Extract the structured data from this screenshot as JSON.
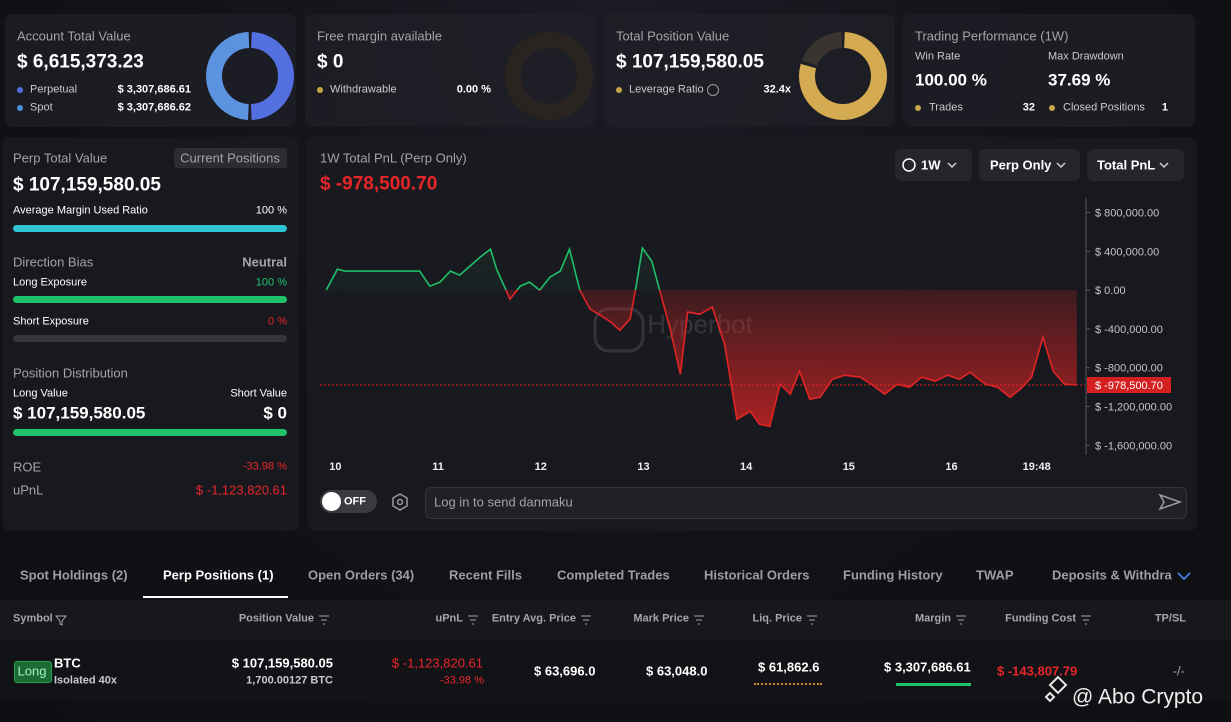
{
  "cards": [
    {
      "title": "Account Total Value",
      "value": "$ 6,615,373.23",
      "items": [
        {
          "label": "Perpetual",
          "value": "$ 3,307,686.61",
          "color": "#5470e0"
        },
        {
          "label": "Spot",
          "value": "$ 3,307,686.62",
          "color": "#4a90d9"
        }
      ],
      "donut": {
        "values": [
          3307686.61,
          3307686.62
        ],
        "colors": [
          "#5470e0",
          "#5b93e0"
        ]
      }
    },
    {
      "title": "Free margin available",
      "value": "$ 0",
      "items": [
        {
          "label": "Withdrawable",
          "value": "0.00 %",
          "color": "#c9a54c"
        }
      ]
    },
    {
      "title": "Total Position Value",
      "value": "$ 107,159,580.05",
      "items": [
        {
          "label": "Leverage Ratio",
          "value": "32.4x",
          "color": "#c9a54c"
        }
      ],
      "donut": {
        "values": [
          80,
          20
        ],
        "colors": [
          "#d4ab50",
          "#3a3430"
        ]
      }
    }
  ],
  "performance": {
    "title": "Trading Performance (1W)",
    "stats": [
      {
        "label": "Win Rate",
        "value": "100.00 %"
      },
      {
        "label": "Max Drawdown",
        "value": "37.69 %"
      }
    ],
    "counts": [
      {
        "label": "Trades",
        "value": "32",
        "color": "#c9a54c"
      },
      {
        "label": "Closed Positions",
        "value": "1",
        "color": "#c9a54c"
      }
    ]
  },
  "perp_panel": {
    "title": "Perp Total Value",
    "button": "Current Positions",
    "value": "$ 107,159,580.05",
    "margin_label": "Average Margin Used Ratio",
    "margin_value": "100 %",
    "direction_label": "Direction Bias",
    "direction_value": "Neutral",
    "long_label": "Long Exposure",
    "long_value": "100 %",
    "short_label": "Short Exposure",
    "short_value": "0 %",
    "distribution_title": "Position Distribution",
    "long_value_label": "Long Value",
    "short_value_label": "Short Value",
    "long_amount": "$ 107,159,580.05",
    "short_amount": "$ 0",
    "roe_label": "ROE",
    "roe": "-33.98 %",
    "upnl_label": "uPnL",
    "upnl": "$ -1,123,820.61"
  },
  "chart": {
    "type": "line",
    "title": "1W Total PnL (Perp Only)",
    "pnl_value": "$ -978,500.70",
    "watermark": "Hyperbot",
    "controls": [
      "1W",
      "Perp Only",
      "Total PnL"
    ],
    "positive_color": "#1fbf6a",
    "negative_color": "#e02424",
    "x": [
      9.91,
      10.02,
      10.09,
      10.82,
      10.92,
      11.02,
      11.12,
      11.21,
      11.31,
      11.41,
      11.51,
      11.57,
      11.7,
      11.8,
      11.89,
      11.99,
      12.09,
      12.19,
      12.28,
      12.38,
      12.48,
      12.58,
      12.67,
      12.77,
      12.87,
      12.93,
      12.99,
      13.08,
      13.16,
      13.26,
      13.36,
      13.43,
      13.55,
      13.67,
      13.79,
      13.91,
      14.04,
      14.13,
      14.23,
      14.33,
      14.43,
      14.52,
      14.62,
      14.72,
      14.84,
      14.96,
      15.11,
      15.22,
      15.35,
      15.47,
      15.59,
      15.71,
      15.84,
      15.96,
      16.08,
      16.18,
      16.33,
      16.45,
      16.57,
      16.67,
      16.78,
      16.89,
      16.99,
      17.1,
      17.22
    ],
    "values": [
      0,
      217000,
      196000,
      196000,
      41000,
      83000,
      196000,
      155000,
      248000,
      341000,
      423000,
      217000,
      -93000,
      41000,
      83000,
      0,
      134000,
      196000,
      423000,
      0,
      -196000,
      -258000,
      -320000,
      -413000,
      -299000,
      52000,
      434000,
      299000,
      -10000,
      -402000,
      -867000,
      -227000,
      -248000,
      -175000,
      -557000,
      -1332000,
      -1249000,
      -1383000,
      -1404000,
      -970000,
      -1073000,
      -836000,
      -1125000,
      -1105000,
      -918000,
      -877000,
      -898000,
      -970000,
      -1073000,
      -970000,
      -1001000,
      -898000,
      -939000,
      -877000,
      -918000,
      -846000,
      -970000,
      -1001000,
      -1105000,
      -1022000,
      -898000,
      -485000,
      -836000,
      -970000,
      -978500.7
    ],
    "xlim": [
      9.85,
      17.3
    ],
    "xticks": [
      10,
      11,
      12,
      13,
      14,
      15,
      16,
      {
        "value": 16.83,
        "label": "19:48"
      }
    ],
    "ylim": [
      -1700000,
      950000
    ],
    "yticks": [
      {
        "value": 800000,
        "label": "$ 800,000.00"
      },
      {
        "value": 400000,
        "label": "$ 400,000.00"
      },
      {
        "value": 0,
        "label": "$ 0.00"
      },
      {
        "value": -400000,
        "label": "$ -400,000.00"
      },
      {
        "value": -800000,
        "label": "$ -800,000.00"
      },
      {
        "value": -1200000,
        "label": "$ -1,200,000.00"
      },
      {
        "value": -1600000,
        "label": "$ -1,600,000.00"
      }
    ]
  },
  "danmaku": {
    "toggle": "OFF",
    "placeholder": "Log in to send danmaku"
  },
  "tabs": [
    "Spot Holdings (2)",
    "Perp Positions (1)",
    "Open Orders (34)",
    "Recent Fills",
    "Completed Trades",
    "Historical Orders",
    "Funding History",
    "TWAP",
    "Deposits & Withdra"
  ],
  "table": {
    "headers": [
      "Symbol",
      "Position Value",
      "uPnL",
      "Entry Avg. Price",
      "Mark Price",
      "Liq. Price",
      "Margin",
      "Funding Cost",
      "TP/SL"
    ],
    "rows": [
      {
        "side": "Long",
        "symbol": "BTC",
        "mode": "Isolated 40x",
        "position_value": "$ 107,159,580.05",
        "size": "1,700.00127 BTC",
        "upnl": "$ -1,123,820.61",
        "upnl_pct": "-33.98 %",
        "entry": "$ 63,696.0",
        "mark": "$ 63,048.0",
        "liq": "$ 61,862.6",
        "margin": "$ 3,307,686.61",
        "funding": "$ -143,807.79",
        "tpsl": "-/-"
      }
    ]
  },
  "watermark": "@ Abo Crypto"
}
